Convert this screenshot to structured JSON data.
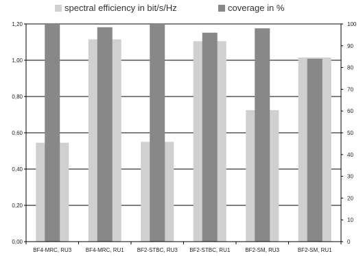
{
  "chart_data": {
    "type": "bar",
    "categories": [
      "BF4-MRC, RU3",
      "BF4-MRC, RU1",
      "BF2-STBC, RU3",
      "BF2-STBC, RU1",
      "BF2-SM, RU3",
      "BF2-SM, RU1"
    ],
    "series": [
      {
        "name": "spectral efficiency in bit/s/Hz",
        "axis": "left",
        "color": "#d0d0d0",
        "values": [
          0.545,
          1.115,
          0.55,
          1.105,
          0.725,
          1.015
        ]
      },
      {
        "name": "coverage in %",
        "axis": "right",
        "color": "#888888",
        "values": [
          100,
          98.5,
          100,
          96,
          98,
          84
        ]
      }
    ],
    "ylim": [
      0,
      1.2
    ],
    "yticks": [
      "0,00",
      "0,20",
      "0,40",
      "0,60",
      "0,80",
      "1,00",
      "1,20"
    ],
    "y2lim": [
      0,
      100
    ],
    "y2ticks": [
      "0",
      "10",
      "20",
      "30",
      "40",
      "50",
      "60",
      "70",
      "80",
      "90",
      "100"
    ],
    "grid": true,
    "legend_position": "top"
  }
}
